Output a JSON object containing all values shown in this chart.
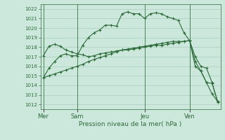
{
  "background_color": "#cce8dc",
  "grid_color": "#a0c8b8",
  "line_color": "#2d6b3a",
  "title": "Pression niveau de la mer( hPa )",
  "ylim": [
    1011.5,
    1022.5
  ],
  "yticks": [
    1012,
    1013,
    1014,
    1015,
    1016,
    1017,
    1018,
    1019,
    1020,
    1021,
    1022
  ],
  "day_labels": [
    "Mer",
    "Sam",
    "Jeu",
    "Ven"
  ],
  "day_positions": [
    0,
    6,
    18,
    26
  ],
  "vline_positions": [
    0,
    6,
    18,
    26
  ],
  "total_points": 32,
  "series1_x": [
    0,
    1,
    2,
    3,
    4,
    5,
    6,
    7,
    8,
    9,
    10,
    11,
    12,
    13,
    14,
    15,
    16,
    17,
    18,
    19,
    20,
    21,
    22,
    23,
    24,
    25,
    26,
    27,
    28,
    29,
    30,
    31
  ],
  "series1_y": [
    1014.8,
    1015.8,
    1016.5,
    1017.1,
    1017.3,
    1017.1,
    1017.1,
    1018.2,
    1019.0,
    1019.5,
    1019.8,
    1020.3,
    1020.3,
    1020.2,
    1021.5,
    1021.7,
    1021.5,
    1021.5,
    1021.0,
    1021.5,
    1021.6,
    1021.5,
    1021.2,
    1021.0,
    1020.8,
    1019.5,
    1018.7,
    1017.0,
    1016.0,
    1015.8,
    1014.3,
    1012.2
  ],
  "series2_x": [
    0,
    1,
    2,
    3,
    4,
    5,
    6,
    7,
    8,
    9,
    10,
    11,
    12,
    13,
    14,
    15,
    16,
    17,
    18,
    19,
    20,
    21,
    22,
    23,
    24,
    25,
    26,
    27,
    28,
    29,
    30,
    31
  ],
  "series2_y": [
    1014.8,
    1015.0,
    1015.2,
    1015.4,
    1015.6,
    1015.8,
    1016.0,
    1016.2,
    1016.5,
    1016.7,
    1016.9,
    1017.1,
    1017.3,
    1017.5,
    1017.7,
    1017.8,
    1017.9,
    1018.0,
    1018.1,
    1018.2,
    1018.3,
    1018.4,
    1018.5,
    1018.6,
    1018.6,
    1018.6,
    1018.7,
    1016.5,
    1015.5,
    1014.3,
    1013.1,
    1012.3
  ],
  "series3_x": [
    0,
    1,
    2,
    3,
    4,
    5,
    6,
    7,
    8,
    9,
    10,
    11,
    12,
    13,
    14,
    15,
    16,
    17,
    18,
    19,
    20,
    21,
    22,
    23,
    24,
    25,
    26,
    27,
    28,
    29,
    30,
    31
  ],
  "series3_y": [
    1017.1,
    1018.1,
    1018.3,
    1018.1,
    1017.7,
    1017.5,
    1017.3,
    1017.2,
    1017.0,
    1017.1,
    1017.3,
    1017.4,
    1017.5,
    1017.6,
    1017.7,
    1017.7,
    1017.8,
    1017.9,
    1018.0,
    1018.1,
    1018.2,
    1018.2,
    1018.3,
    1018.4,
    1018.5,
    1018.6,
    1018.7,
    1016.0,
    1015.5,
    1014.3,
    1014.2,
    1012.3
  ]
}
